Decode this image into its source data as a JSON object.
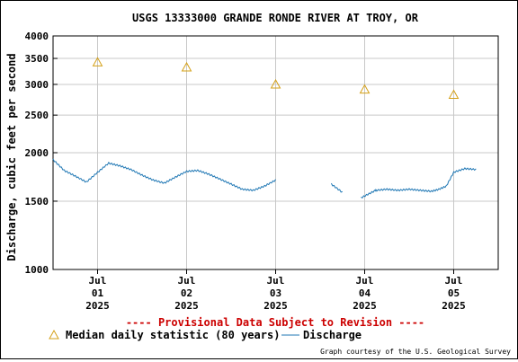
{
  "chart_data": {
    "type": "line",
    "title": "USGS 13333000 GRANDE RONDE RIVER AT TROY, OR",
    "ylabel": "Discharge, cubic feet per second",
    "ylim": [
      1000,
      4000
    ],
    "y_scale": "log",
    "yticks": [
      1000,
      1500,
      2000,
      2500,
      3000,
      3500,
      4000
    ],
    "xlim": [
      "2025-06-30T12:00",
      "2025-07-05T12:00"
    ],
    "xticks": [
      {
        "x": "2025-07-01T00:00",
        "label_lines": [
          "Jul",
          "01",
          "2025"
        ]
      },
      {
        "x": "2025-07-02T00:00",
        "label_lines": [
          "Jul",
          "02",
          "2025"
        ]
      },
      {
        "x": "2025-07-03T00:00",
        "label_lines": [
          "Jul",
          "03",
          "2025"
        ]
      },
      {
        "x": "2025-07-04T00:00",
        "label_lines": [
          "Jul",
          "04",
          "2025"
        ]
      },
      {
        "x": "2025-07-05T00:00",
        "label_lines": [
          "Jul",
          "05",
          "2025"
        ]
      }
    ],
    "grid": true,
    "legend_position": "bottom",
    "series": [
      {
        "name": "Discharge",
        "color": "#1f77b4",
        "marker": "line",
        "x": [
          "2025-06-30T12:00",
          "2025-06-30T15:00",
          "2025-06-30T18:00",
          "2025-06-30T21:00",
          "2025-07-01T00:00",
          "2025-07-01T03:00",
          "2025-07-01T06:00",
          "2025-07-01T09:00",
          "2025-07-01T12:00",
          "2025-07-01T15:00",
          "2025-07-01T18:00",
          "2025-07-01T21:00",
          "2025-07-02T00:00",
          "2025-07-02T03:00",
          "2025-07-02T06:00",
          "2025-07-02T09:00",
          "2025-07-02T12:00",
          "2025-07-02T15:00",
          "2025-07-02T18:00",
          "2025-07-02T21:00",
          "2025-07-03T00:00",
          null,
          "2025-07-03T15:00",
          "2025-07-03T18:00",
          null,
          "2025-07-03T23:00",
          "2025-07-04T03:00",
          "2025-07-04T06:00",
          "2025-07-04T09:00",
          "2025-07-04T12:00",
          "2025-07-04T15:00",
          "2025-07-04T18:00",
          "2025-07-04T20:00",
          "2025-07-04T22:00",
          "2025-07-05T00:00",
          "2025-07-05T03:00",
          "2025-07-05T06:00"
        ],
        "y": [
          1920,
          1800,
          1740,
          1680,
          1780,
          1880,
          1850,
          1810,
          1750,
          1700,
          1670,
          1730,
          1790,
          1800,
          1760,
          1710,
          1660,
          1610,
          1600,
          1640,
          1700,
          null,
          1660,
          1580,
          null,
          1530,
          1600,
          1610,
          1600,
          1610,
          1600,
          1590,
          1610,
          1640,
          1780,
          1820,
          1810
        ]
      },
      {
        "name": "Median daily statistic (80 years)",
        "color": "#d4a017",
        "marker": "triangle",
        "x": [
          "2025-07-01T00:00",
          "2025-07-02T00:00",
          "2025-07-03T00:00",
          "2025-07-04T00:00",
          "2025-07-05T00:00"
        ],
        "y": [
          3420,
          3320,
          3000,
          2910,
          2820
        ]
      }
    ],
    "annotations": {
      "provisional": "---- Provisional Data Subject to Revision ----",
      "credit": "Graph courtesy of the U.S. Geological Survey"
    }
  }
}
